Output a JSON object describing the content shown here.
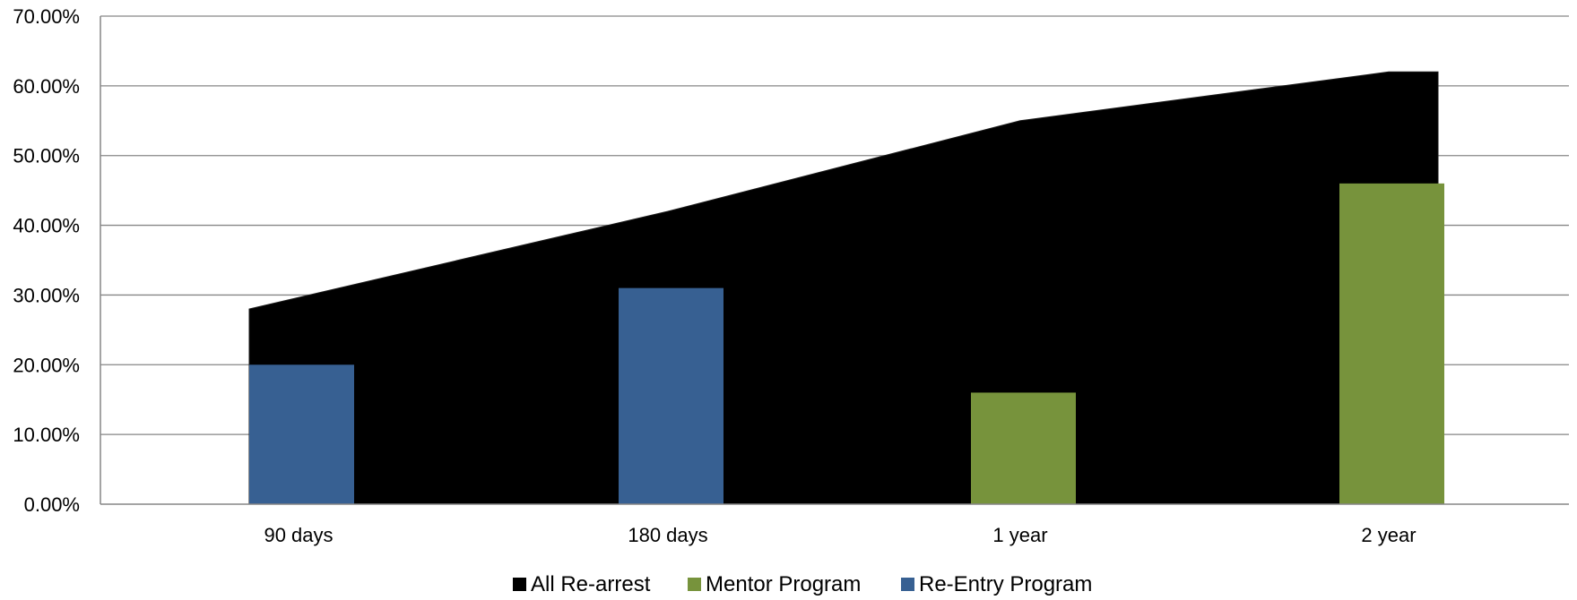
{
  "chart_data": {
    "type": "bar",
    "categories": [
      "90 days",
      "180 days",
      "1 year",
      "2 year"
    ],
    "ylim": [
      0,
      0.7
    ],
    "y_ticks": [
      0,
      0.1,
      0.2,
      0.3,
      0.4,
      0.5,
      0.6,
      0.7
    ],
    "y_tick_labels": [
      "0.00%",
      "10.00%",
      "20.00%",
      "30.00%",
      "40.00%",
      "50.00%",
      "60.00%",
      "70.00%"
    ],
    "grid": true,
    "legend_position": "bottom",
    "series": [
      {
        "name": "All Re-arrest",
        "kind": "area",
        "color": "#000000",
        "values": [
          0.28,
          0.42,
          0.55,
          0.62
        ]
      },
      {
        "name": "Mentor Program",
        "kind": "bar",
        "color": "#77933c",
        "values": [
          null,
          null,
          0.16,
          0.46
        ]
      },
      {
        "name": "Re-Entry Program",
        "kind": "bar",
        "color": "#376092",
        "values": [
          0.2,
          0.31,
          null,
          null
        ]
      }
    ]
  }
}
